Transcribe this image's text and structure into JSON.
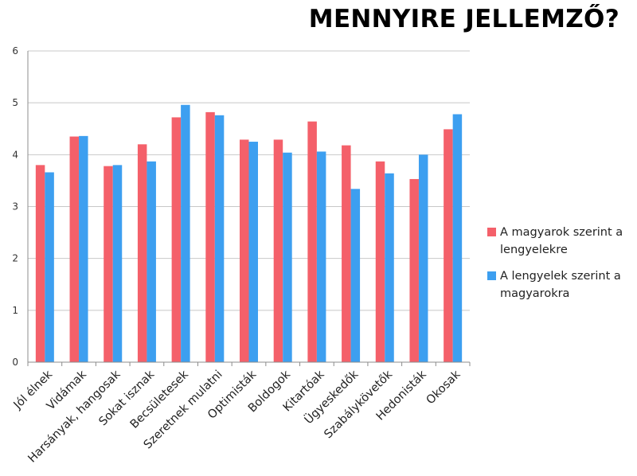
{
  "chart_data": {
    "type": "bar",
    "title": "MENNYIRE JELLEMZŐ?",
    "categories": [
      "Jól élnek",
      "Vidámak",
      "Harsányak, hangosak",
      "Sokat isznak",
      "Becsületesek",
      "Szeretnek mulatni",
      "Optimisták",
      "Boldogok",
      "Kitartóak",
      "Ügyeskedők",
      "Szabálykövetők",
      "Hedonisták",
      "Okosak"
    ],
    "series": [
      {
        "name": "A magyarok szerint a lengyelekre",
        "color": "#f4606a",
        "values": [
          3.8,
          4.35,
          3.78,
          4.2,
          4.72,
          4.82,
          4.29,
          4.29,
          4.64,
          4.18,
          3.87,
          3.53,
          4.49
        ]
      },
      {
        "name": "A lengyelek szerint a magyarokra",
        "color": "#3d9ff0",
        "values": [
          3.66,
          4.36,
          3.8,
          3.87,
          4.96,
          4.76,
          4.25,
          4.04,
          4.06,
          3.34,
          3.64,
          4.0,
          4.78
        ]
      }
    ],
    "yticks": [
      0,
      1,
      2,
      3,
      4,
      5,
      6
    ],
    "ylim": [
      0,
      6
    ],
    "grid": true,
    "legend_position": "right"
  }
}
